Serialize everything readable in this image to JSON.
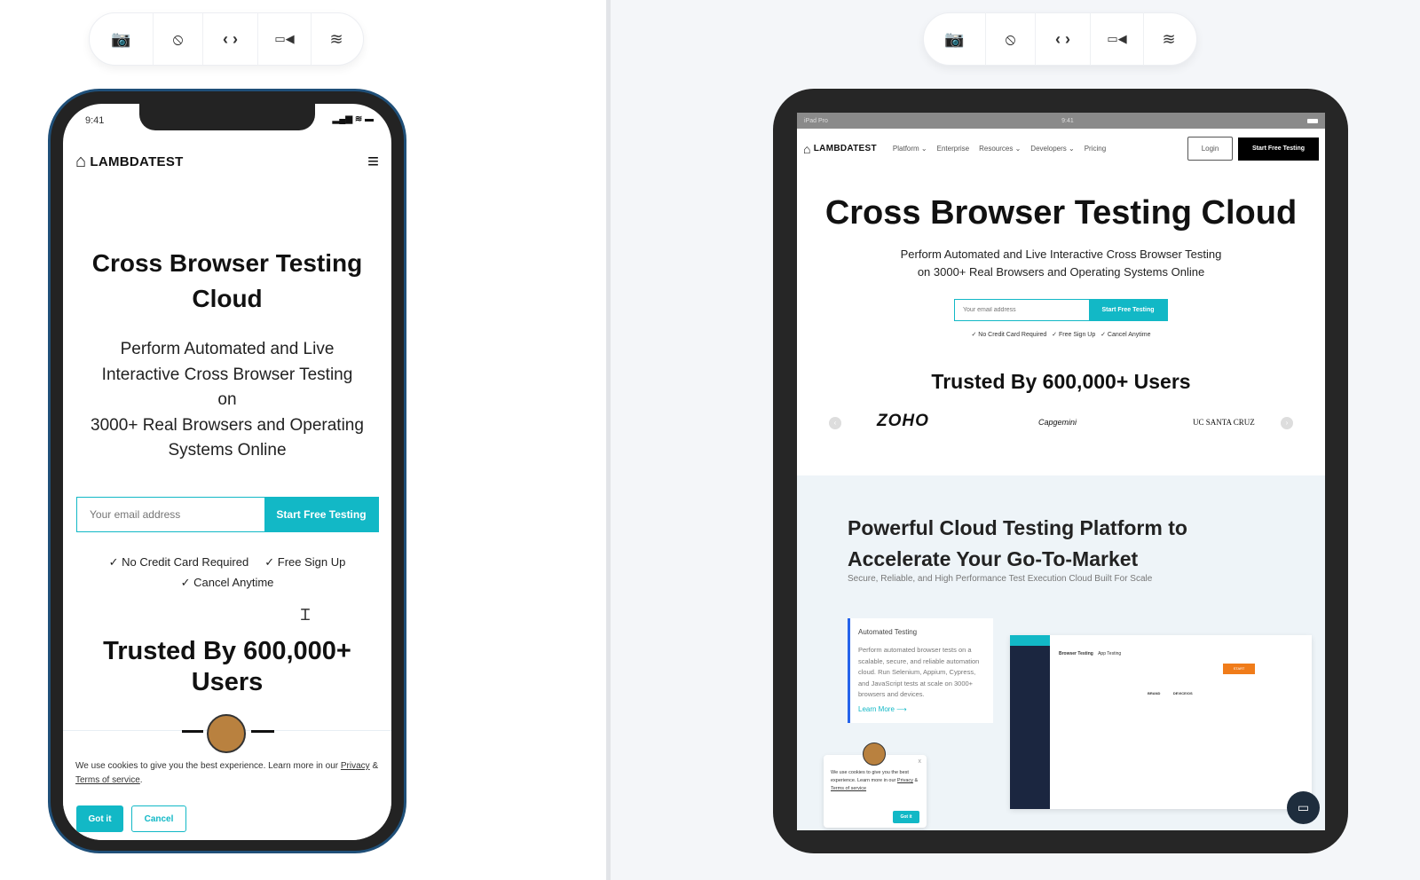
{
  "toolbar": {
    "icons": [
      "camera-icon",
      "rotate-icon",
      "code-icon",
      "video-icon",
      "wifi-icon"
    ],
    "glyphs": [
      "📷",
      "⦸",
      "‹ ›",
      "▭◀",
      "≋"
    ]
  },
  "phone": {
    "status_time": "9:41",
    "brand": "LAMBDATEST",
    "hero_title": "Cross Browser Testing Cloud",
    "hero_sub_1": "Perform Automated and Live Interactive Cross Browser Testing on",
    "hero_sub_2": "3000+ Real Browsers and Operating Systems Online",
    "email_placeholder": "Your email address",
    "cta": "Start Free Testing",
    "checks": [
      "No Credit Card Required",
      "Free Sign Up",
      "Cancel Anytime"
    ],
    "trusted": "Trusted By 600,000+ Users",
    "cookie_text": "We use cookies to give you the best experience. Learn more in our",
    "privacy": "Privacy",
    "amp": "&",
    "terms": "Terms of service",
    "got_it": "Got it",
    "cancel": "Cancel"
  },
  "ipad": {
    "status_left": "iPad Pro",
    "status_time": "9:41",
    "brand": "LAMBDATEST",
    "nav": [
      "Platform",
      "Enterprise",
      "Resources",
      "Developers",
      "Pricing"
    ],
    "login": "Login",
    "nav_cta": "Start Free Testing",
    "hero_title": "Cross Browser Testing Cloud",
    "hero_sub_1": "Perform Automated and Live Interactive Cross Browser Testing",
    "hero_sub_2": "on 3000+ Real Browsers and Operating Systems Online",
    "email_placeholder": "Your email address",
    "cta": "Start Free Testing",
    "checks": [
      "No Credit Card Required",
      "Free Sign Up",
      "Cancel Anytime"
    ],
    "trusted": "Trusted By 600,000+ Users",
    "logos": [
      "ZOHO",
      "Capgemini",
      "UC SANTA CRUZ"
    ],
    "section_title_1": "Powerful Cloud Testing Platform to",
    "section_title_2": "Accelerate Your Go-To-Market",
    "section_sub": "Secure, Reliable, and High Performance Test Execution Cloud Built For Scale",
    "card_title": "Automated Testing",
    "card_body": "Perform automated browser tests on a scalable, secure, and reliable automation cloud. Run Selenium, Appium, Cypress, and JavaScript tests at scale on 3000+ browsers and devices.",
    "learn_more": "Learn More ⟶",
    "app_tabs": [
      "Browser Testing",
      "App Testing"
    ],
    "app_start": "START",
    "app_cols": [
      "BRAND",
      "DEVICE/OS"
    ],
    "cookie_text": "We use cookies to give you the best experience. Learn more in our",
    "privacy": "Privacy",
    "terms": "Terms of service",
    "got_it": "Got it",
    "close": "x"
  },
  "colors": {
    "accent": "#12b8c6",
    "orange": "#f07c1a",
    "dark_nav": "#1b2640"
  }
}
